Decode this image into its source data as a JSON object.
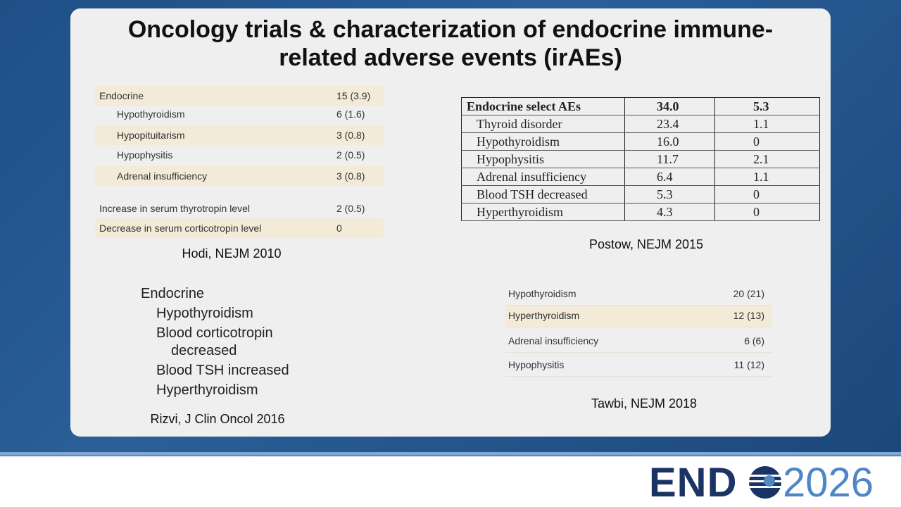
{
  "title": "Oncology trials & characterization of endocrine immune-related adverse events (irAEs)",
  "hodi": {
    "rows": [
      [
        "Endocrine",
        "15 (3.9)"
      ],
      [
        "Hypothyroidism",
        "6 (1.6)"
      ],
      [
        "Hypopituitarism",
        "3 (0.8)"
      ],
      [
        "Hypophysitis",
        "2 (0.5)"
      ],
      [
        "Adrenal insufficiency",
        "3 (0.8)"
      ],
      [
        "Increase in serum thyrotropin level",
        "2 (0.5)"
      ],
      [
        "Decrease in serum corticotropin level",
        "0"
      ]
    ],
    "caption": "Hodi, NEJM 2010"
  },
  "postow": {
    "rows": [
      [
        "Endocrine select AEs",
        "34.0",
        "5.3"
      ],
      [
        "Thyroid disorder",
        "23.4",
        "1.1"
      ],
      [
        "Hypothyroidism",
        "16.0",
        "0"
      ],
      [
        "Hypophysitis",
        "11.7",
        "2.1"
      ],
      [
        "Adrenal insufficiency",
        "6.4",
        "1.1"
      ],
      [
        "Blood TSH decreased",
        "5.3",
        "0"
      ],
      [
        "Hyperthyroidism",
        "4.3",
        "0"
      ]
    ],
    "caption": "Postow, NEJM 2015"
  },
  "rizvi": {
    "items": [
      "Endocrine",
      "Hypothyroidism",
      "Blood corticotropin decreased",
      "Blood TSH increased",
      "Hyperthyroidism"
    ],
    "caption": "Rizvi, J Clin Oncol 2016"
  },
  "tawbi": {
    "rows": [
      [
        "Hypothyroidism",
        "20 (21)"
      ],
      [
        "Hyperthyroidism",
        "12 (13)"
      ],
      [
        "Adrenal insufficiency",
        "6 (6)"
      ],
      [
        "Hypophysitis",
        "11 (12)"
      ]
    ],
    "caption": "Tawbi, NEJM 2018"
  },
  "logo": {
    "left": "END",
    "right": "2026"
  }
}
